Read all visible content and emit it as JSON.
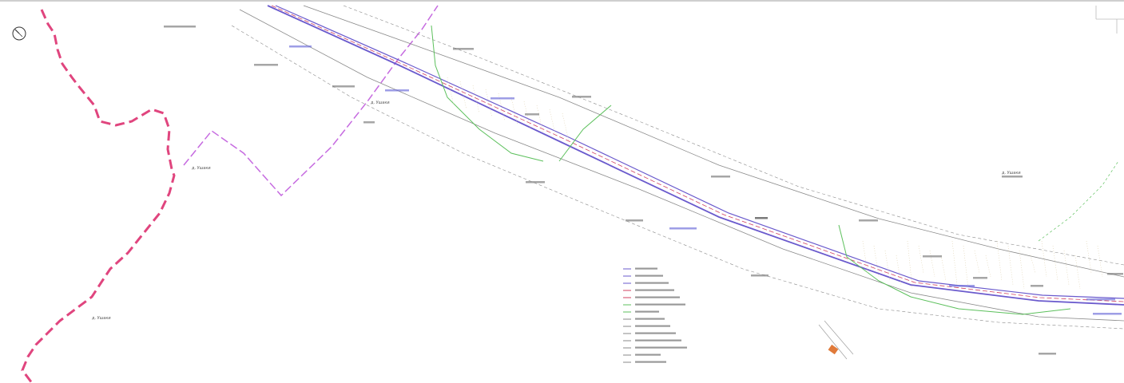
{
  "map": {
    "colors": {
      "boundary_red": "#e0457e",
      "boundary_violet": "#c66be0",
      "corridor_violet": "#6a5acd",
      "corridor_red": "#d04060",
      "offset_gray": "#8a8a8a",
      "green_line": "#5cc05c",
      "background": "#ffffff"
    },
    "icons": [
      "compass-rose-icon"
    ],
    "place_labels": [
      "д. Ушаки",
      "д. Ушаки",
      "д. Ушаки",
      "д. Ушаки"
    ],
    "legend": {
      "rows": 14,
      "note": ""
    }
  }
}
